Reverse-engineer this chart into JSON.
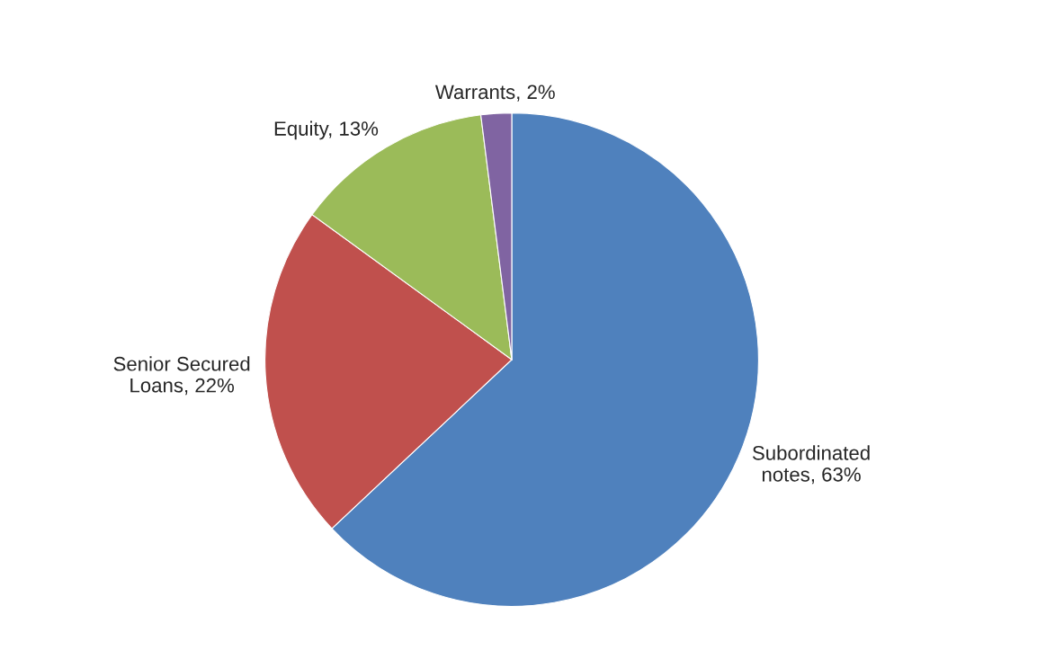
{
  "chart_data": {
    "type": "pie",
    "categories": [
      "Subordinated notes",
      "Senior Secured Loans",
      "Equity",
      "Warrants"
    ],
    "values": [
      63,
      22,
      13,
      2
    ],
    "colors": [
      "#4f81bd",
      "#c0504d",
      "#9bbb59",
      "#8064a2"
    ],
    "value_labels": [
      "63%",
      "22%",
      "13%",
      "2%"
    ],
    "legend": false
  }
}
